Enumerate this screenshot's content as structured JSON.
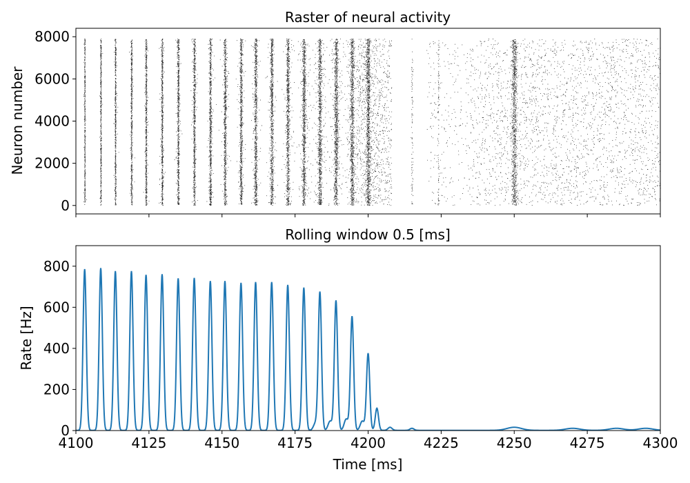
{
  "chart_data": [
    {
      "type": "scatter",
      "title": "Raster of neural activity",
      "xlabel": "",
      "ylabel": "Neuron number",
      "xlim": [
        4100,
        4300
      ],
      "ylim": [
        -400,
        8400
      ],
      "xticks": [
        4100,
        4125,
        4150,
        4175,
        4200,
        4225,
        4250,
        4275,
        4300
      ],
      "show_xtick_labels": false,
      "yticks": [
        0,
        2000,
        4000,
        6000,
        8000
      ],
      "yticklabels": [
        "0",
        "2000",
        "4000",
        "6000",
        "8000"
      ],
      "grid": false,
      "marker_color": "#000000",
      "neuron_range": [
        0,
        7900
      ],
      "synchronous_bursts_ms": [
        4103,
        4108.5,
        4113.5,
        4119,
        4124,
        4129.5,
        4135,
        4140.5,
        4146,
        4151,
        4156.5,
        4161.5,
        4167,
        4172.5,
        4178,
        4183.5,
        4189,
        4194.5,
        4200
      ],
      "dense_activity_end_ms": 4208,
      "sparse_activity_ms": [
        4220,
        4300
      ]
    },
    {
      "type": "line",
      "title": "Rolling window 0.5 [ms]",
      "xlabel": "Time [ms]",
      "ylabel": "Rate [Hz]",
      "xlim": [
        4100,
        4300
      ],
      "ylim": [
        0,
        900
      ],
      "xticks": [
        4100,
        4125,
        4150,
        4175,
        4200,
        4225,
        4250,
        4275,
        4300
      ],
      "xticklabels": [
        "4100",
        "4125",
        "4150",
        "4175",
        "4200",
        "4225",
        "4250",
        "4275",
        "4300"
      ],
      "yticks": [
        0,
        200,
        400,
        600,
        800
      ],
      "yticklabels": [
        "0",
        "200",
        "400",
        "600",
        "800"
      ],
      "grid": false,
      "line_color": "#1f77b4",
      "series": [
        {
          "peaks": [
            {
              "x": 4103,
              "y": 785
            },
            {
              "x": 4108.5,
              "y": 790
            },
            {
              "x": 4113.5,
              "y": 775
            },
            {
              "x": 4119,
              "y": 775
            },
            {
              "x": 4124,
              "y": 757
            },
            {
              "x": 4129.5,
              "y": 760
            },
            {
              "x": 4135,
              "y": 740
            },
            {
              "x": 4140.5,
              "y": 742
            },
            {
              "x": 4146,
              "y": 727
            },
            {
              "x": 4151,
              "y": 727
            },
            {
              "x": 4156.5,
              "y": 718
            },
            {
              "x": 4161.5,
              "y": 722
            },
            {
              "x": 4167,
              "y": 722
            },
            {
              "x": 4172.5,
              "y": 708
            },
            {
              "x": 4178,
              "y": 695
            },
            {
              "x": 4183.5,
              "y": 672
            },
            {
              "x": 4189,
              "y": 632
            },
            {
              "x": 4194.5,
              "y": 555
            },
            {
              "x": 4200,
              "y": 375
            },
            {
              "x": 4203,
              "y": 108
            }
          ],
          "minor_peaks": [
            {
              "x": 4182,
              "y": 35
            },
            {
              "x": 4187,
              "y": 45
            },
            {
              "x": 4192.5,
              "y": 55
            },
            {
              "x": 4198,
              "y": 45
            },
            {
              "x": 4207.5,
              "y": 15
            },
            {
              "x": 4215,
              "y": 10
            },
            {
              "x": 4250,
              "y": 15
            },
            {
              "x": 4270,
              "y": 10
            },
            {
              "x": 4285,
              "y": 10
            },
            {
              "x": 4295,
              "y": 10
            }
          ]
        }
      ]
    }
  ]
}
